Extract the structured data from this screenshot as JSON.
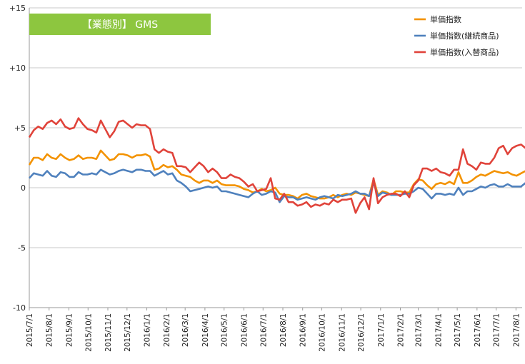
{
  "chart_data": {
    "type": "line",
    "title": "【業態別】 GMS",
    "title_bg": "#8dc63f",
    "xlabel": "",
    "ylabel": "",
    "ylim": [
      -10,
      15
    ],
    "y_ticks": [
      {
        "value": 15,
        "label": "+15"
      },
      {
        "value": 10,
        "label": "+10"
      },
      {
        "value": 5,
        "label": "+5"
      },
      {
        "value": 0,
        "label": "0"
      },
      {
        "value": -5,
        "label": "-5"
      },
      {
        "value": -10,
        "label": "-10"
      }
    ],
    "x_tick_labels": [
      "2015/7/1",
      "2015/8/1",
      "2015/9/1",
      "2015/10/1",
      "2015/11/1",
      "2015/12/1",
      "2016/1/1",
      "2016/2/1",
      "2016/3/1",
      "2016/4/1",
      "2016/5/1",
      "2016/6/1",
      "2016/7/1",
      "2016/8/1",
      "2016/9/1",
      "2016/10/1",
      "2016/11/1",
      "2016/12/1",
      "2017/1/1",
      "2017/2/1",
      "2017/3/1",
      "2017/4/1",
      "2017/5/1",
      "2017/6/1",
      "2017/7/1",
      "2017/8/1"
    ],
    "x_first": "2015/7/1",
    "x_step_weeks": 1,
    "grid": "horizontal",
    "legend_position": "top-right",
    "series": [
      {
        "name": "単価指数",
        "color": "#f39200",
        "values": [
          1.9,
          2.5,
          2.5,
          2.3,
          2.8,
          2.5,
          2.4,
          2.8,
          2.5,
          2.3,
          2.4,
          2.7,
          2.4,
          2.5,
          2.5,
          2.4,
          3.1,
          2.7,
          2.3,
          2.4,
          2.8,
          2.8,
          2.7,
          2.5,
          2.7,
          2.7,
          2.8,
          2.6,
          1.5,
          1.6,
          1.9,
          1.7,
          1.8,
          1.5,
          1.1,
          1.0,
          0.9,
          0.6,
          0.4,
          0.6,
          0.6,
          0.4,
          0.6,
          0.3,
          0.2,
          0.2,
          0.2,
          0.1,
          -0.1,
          -0.2,
          -0.4,
          -0.3,
          -0.1,
          -0.3,
          -0.2,
          0.0,
          -0.5,
          -0.6,
          -0.6,
          -0.7,
          -0.9,
          -0.6,
          -0.5,
          -0.7,
          -0.8,
          -0.9,
          -0.9,
          -0.8,
          -0.6,
          -0.8,
          -0.6,
          -0.5,
          -0.6,
          -0.4,
          -0.5,
          -0.6,
          -0.7,
          0.7,
          -0.6,
          -0.3,
          -0.4,
          -0.6,
          -0.3,
          -0.3,
          -0.4,
          -0.4,
          0.3,
          0.7,
          0.6,
          0.2,
          -0.1,
          0.3,
          0.4,
          0.3,
          0.5,
          0.3,
          1.3,
          0.4,
          0.4,
          0.6,
          0.9,
          1.1,
          1.0,
          1.2,
          1.4,
          1.3,
          1.2,
          1.3,
          1.1,
          1.0,
          1.2,
          1.4
        ]
      },
      {
        "name": "単価指数(継続商品)",
        "color": "#4f81bd",
        "values": [
          0.8,
          1.2,
          1.1,
          1.0,
          1.4,
          1.0,
          0.9,
          1.3,
          1.2,
          0.9,
          0.9,
          1.3,
          1.1,
          1.1,
          1.2,
          1.1,
          1.5,
          1.3,
          1.1,
          1.2,
          1.4,
          1.5,
          1.4,
          1.3,
          1.5,
          1.5,
          1.4,
          1.4,
          1.0,
          1.2,
          1.4,
          1.1,
          1.2,
          0.6,
          0.4,
          0.1,
          -0.3,
          -0.2,
          -0.1,
          0.0,
          0.1,
          0.0,
          0.1,
          -0.3,
          -0.3,
          -0.4,
          -0.5,
          -0.6,
          -0.7,
          -0.8,
          -0.5,
          -0.3,
          -0.6,
          -0.5,
          -0.3,
          -0.4,
          -1.2,
          -0.7,
          -0.8,
          -0.8,
          -1.0,
          -0.9,
          -0.8,
          -0.9,
          -1.0,
          -0.8,
          -0.7,
          -0.8,
          -0.9,
          -0.6,
          -0.7,
          -0.6,
          -0.5,
          -0.3,
          -0.5,
          -0.5,
          -0.7,
          0.4,
          -0.7,
          -0.4,
          -0.5,
          -0.6,
          -0.6,
          -0.6,
          -0.5,
          -0.5,
          -0.3,
          0.0,
          -0.1,
          -0.5,
          -0.9,
          -0.5,
          -0.5,
          -0.6,
          -0.5,
          -0.6,
          0.0,
          -0.6,
          -0.3,
          -0.3,
          -0.1,
          0.1,
          0.0,
          0.2,
          0.3,
          0.1,
          0.1,
          0.3,
          0.1,
          0.1,
          0.1,
          0.4
        ]
      },
      {
        "name": "単価指数(入替商品)",
        "color": "#e0433a",
        "values": [
          4.2,
          4.8,
          5.1,
          4.9,
          5.4,
          5.6,
          5.3,
          5.7,
          5.1,
          4.9,
          5.0,
          5.8,
          5.3,
          4.9,
          4.8,
          4.6,
          5.6,
          4.9,
          4.2,
          4.7,
          5.5,
          5.6,
          5.3,
          5.0,
          5.3,
          5.2,
          5.2,
          4.9,
          3.2,
          2.9,
          3.2,
          3.0,
          2.9,
          1.8,
          1.8,
          1.7,
          1.3,
          1.7,
          2.1,
          1.8,
          1.3,
          1.6,
          1.3,
          0.8,
          0.8,
          1.1,
          0.9,
          0.8,
          0.5,
          0.1,
          0.3,
          -0.3,
          -0.2,
          -0.1,
          0.8,
          -0.9,
          -1.0,
          -0.5,
          -1.2,
          -1.2,
          -1.5,
          -1.4,
          -1.2,
          -1.6,
          -1.4,
          -1.5,
          -1.3,
          -1.4,
          -1.0,
          -1.2,
          -1.0,
          -1.0,
          -0.9,
          -2.1,
          -1.3,
          -0.8,
          -1.8,
          0.8,
          -1.3,
          -0.8,
          -0.6,
          -0.5,
          -0.5,
          -0.7,
          -0.3,
          -0.8,
          0.2,
          0.6,
          1.6,
          1.6,
          1.4,
          1.6,
          1.3,
          1.2,
          1.0,
          1.5,
          1.5,
          3.2,
          2.0,
          1.8,
          1.5,
          2.1,
          2.0,
          2.0,
          2.5,
          3.3,
          3.5,
          2.8,
          3.3,
          3.5,
          3.6,
          3.3
        ]
      }
    ]
  }
}
